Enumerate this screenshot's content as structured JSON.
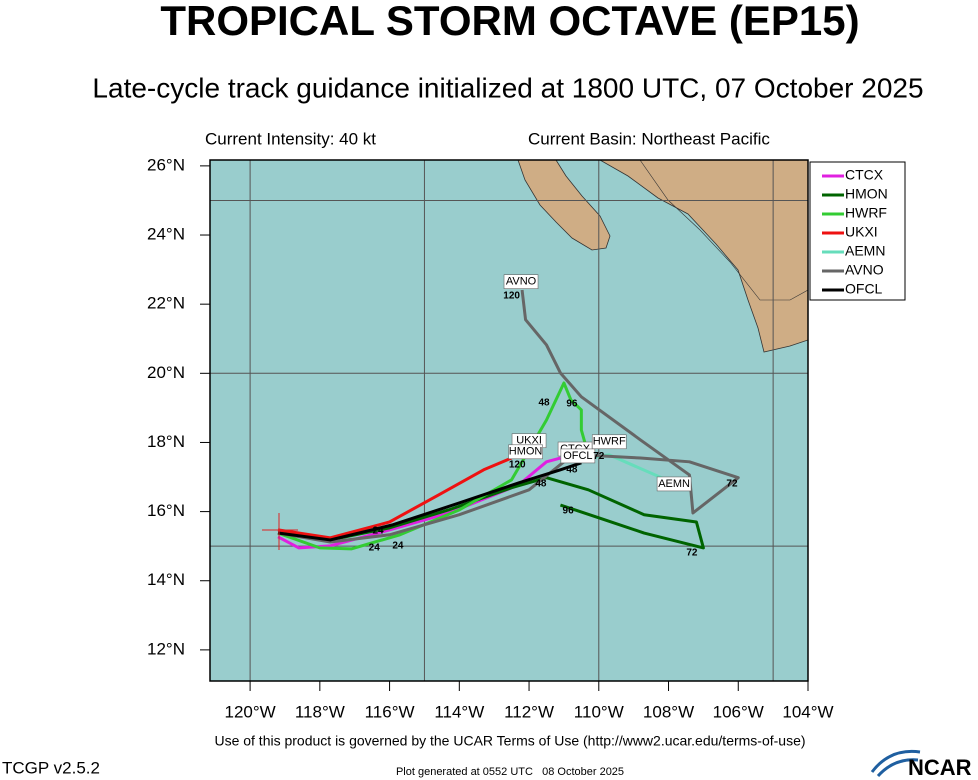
{
  "map": {
    "title": "TROPICAL STORM OCTAVE (EP15)",
    "subtitle": "Late-cycle track guidance initialized at 1800 UTC, 07 October 2025",
    "intensity": "Current Intensity: 40 kt",
    "basin": "Current Basin: Northeast Pacific",
    "terms": "Use of this product is governed by the UCAR Terms of Use (http://www2.ucar.edu/terms-of-use)",
    "version": "TCGP v2.5.2",
    "generated": "Plot generated at 0552 UTC   08 October 2025",
    "logo": "NCAR",
    "xlim": [
      -121.15,
      -104
    ],
    "ylim": [
      11.1,
      26.17
    ],
    "xticks": [
      {
        "value": -120,
        "label": "120°W"
      },
      {
        "value": -118,
        "label": "118°W"
      },
      {
        "value": -116,
        "label": "116°W"
      },
      {
        "value": -114,
        "label": "114°W"
      },
      {
        "value": -112,
        "label": "112°W"
      },
      {
        "value": -110,
        "label": "110°W"
      },
      {
        "value": -108,
        "label": "108°W"
      },
      {
        "value": -106,
        "label": "106°W"
      },
      {
        "value": -104,
        "label": "104°W"
      }
    ],
    "yticks": [
      {
        "value": 12,
        "label": "12°N"
      },
      {
        "value": 14,
        "label": "14°N"
      },
      {
        "value": 16,
        "label": "16°N"
      },
      {
        "value": 18,
        "label": "18°N"
      },
      {
        "value": 20,
        "label": "20°N"
      },
      {
        "value": 22,
        "label": "22°N"
      },
      {
        "value": 24,
        "label": "24°N"
      },
      {
        "value": 26,
        "label": "26°N"
      }
    ],
    "grid_lons": [
      -120,
      -115,
      -110,
      -105
    ],
    "grid_lats": [
      15,
      20,
      25
    ],
    "tracks": [
      {
        "name": "CTCX",
        "color": "#e020e0",
        "lon": [
          -119.2,
          -118.6,
          -117.7,
          -116.0,
          -114.3,
          -112.3,
          -111.5,
          -111.1
        ],
        "lat": [
          15.27,
          14.95,
          15.01,
          15.47,
          15.96,
          16.77,
          17.44,
          17.55
        ]
      },
      {
        "name": "HMON",
        "color": "#006400",
        "lon": [
          -119.2,
          -117.7,
          -116.0,
          -114.3,
          -112.5,
          -111.5,
          -110.3,
          -108.7,
          -107.2,
          -107.0,
          -108.7,
          -110.0,
          -111.1
        ],
        "lat": [
          15.38,
          15.18,
          15.53,
          16.05,
          16.69,
          16.98,
          16.63,
          15.91,
          15.7,
          14.95,
          15.38,
          15.82,
          16.19
        ]
      },
      {
        "name": "HWRF",
        "color": "#33cc33",
        "lon": [
          -119.2,
          -118.0,
          -117.1,
          -115.7,
          -114.0,
          -112.5,
          -111.5,
          -111.0,
          -110.8,
          -110.5,
          -110.5,
          -110.3
        ],
        "lat": [
          15.38,
          14.95,
          14.92,
          15.33,
          16.05,
          16.92,
          18.65,
          19.72,
          19.23,
          18.94,
          18.36,
          17.64
        ]
      },
      {
        "name": "UKXI",
        "color": "#ee1111",
        "lon": [
          -119.2,
          -117.7,
          -116.0,
          -114.6,
          -113.3,
          -112.5
        ],
        "lat": [
          15.47,
          15.24,
          15.7,
          16.48,
          17.21,
          17.55
        ]
      },
      {
        "name": "AEMN",
        "color": "#66ddbb",
        "lon": [
          -111.1,
          -109.7,
          -108.2,
          -107.4
        ],
        "lat": [
          17.44,
          17.64,
          16.98,
          16.72
        ]
      },
      {
        "name": "AVNO",
        "color": "#666666",
        "lon": [
          -119.2,
          -117.7,
          -116.0,
          -114.0,
          -112.0,
          -111.0,
          -110.5,
          -108.8,
          -107.4,
          -106.0,
          -107.3,
          -107.4,
          -108.8,
          -110.5,
          -111.1,
          -111.5,
          -112.1,
          -112.2
        ],
        "lat": [
          15.38,
          15.12,
          15.33,
          15.91,
          16.63,
          17.44,
          17.64,
          17.55,
          17.44,
          16.98,
          15.96,
          17.06,
          18.07,
          19.32,
          20.01,
          20.82,
          21.55,
          22.41
        ]
      },
      {
        "name": "OFCL",
        "color": "#000000",
        "lon": [
          -119.2,
          -117.7,
          -115.9,
          -114.0,
          -112.3,
          -111.1,
          -110.5
        ],
        "lat": [
          15.38,
          15.18,
          15.62,
          16.25,
          16.83,
          17.21,
          17.41
        ]
      }
    ],
    "annotations": [
      {
        "text": "AVNO",
        "lon": -112.23,
        "lat": 22.65,
        "boxed": true
      },
      {
        "text": "120",
        "lon": -112.5,
        "lat": 22.24,
        "boxed": false
      },
      {
        "text": "48",
        "lon": -111.57,
        "lat": 19.14,
        "boxed": false
      },
      {
        "text": "96",
        "lon": -110.77,
        "lat": 19.12,
        "boxed": false
      },
      {
        "text": "UKXI",
        "lon": -112.0,
        "lat": 18.05,
        "boxed": true
      },
      {
        "text": "HMON",
        "lon": -112.1,
        "lat": 17.73,
        "boxed": true
      },
      {
        "text": "120",
        "lon": -112.34,
        "lat": 17.35,
        "boxed": false
      },
      {
        "text": "CTCX",
        "lon": -110.68,
        "lat": 17.81,
        "boxed": true
      },
      {
        "text": "OFCL",
        "lon": -110.6,
        "lat": 17.61,
        "boxed": true
      },
      {
        "text": "HWRF",
        "lon": -109.7,
        "lat": 18.02,
        "boxed": true
      },
      {
        "text": "72",
        "lon": -110.0,
        "lat": 17.6,
        "boxed": false
      },
      {
        "text": "48",
        "lon": -110.77,
        "lat": 17.21,
        "boxed": false
      },
      {
        "text": "AEMN",
        "lon": -107.84,
        "lat": 16.8,
        "boxed": true
      },
      {
        "text": "72",
        "lon": -106.18,
        "lat": 16.8,
        "boxed": false
      },
      {
        "text": "48",
        "lon": -111.66,
        "lat": 16.8,
        "boxed": false
      },
      {
        "text": "96",
        "lon": -110.88,
        "lat": 16.02,
        "boxed": false
      },
      {
        "text": "72",
        "lon": -107.33,
        "lat": 14.81,
        "boxed": false
      },
      {
        "text": "24",
        "lon": -116.33,
        "lat": 15.44,
        "boxed": false
      },
      {
        "text": "24",
        "lon": -116.44,
        "lat": 14.95,
        "boxed": false
      },
      {
        "text": "24",
        "lon": -115.76,
        "lat": 15.01,
        "boxed": false
      }
    ]
  }
}
